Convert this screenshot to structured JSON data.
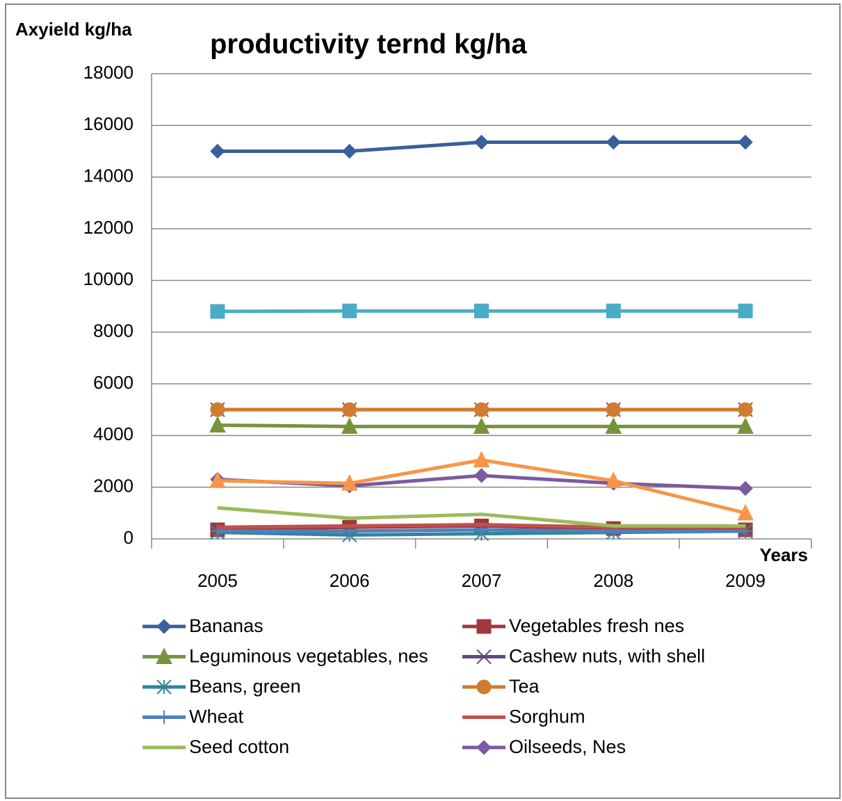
{
  "chart_data": {
    "type": "line",
    "title": "productivity ternd kg/ha",
    "y_label": "Axyield kg/ha",
    "x_label": "Years",
    "categories": [
      "2005",
      "2006",
      "2007",
      "2008",
      "2009"
    ],
    "ylim": [
      0,
      18000
    ],
    "yticks": [
      0,
      2000,
      4000,
      6000,
      8000,
      10000,
      12000,
      14000,
      16000,
      18000
    ],
    "grid": true,
    "series": [
      {
        "name": "Bananas",
        "color": "#3a5f9a",
        "marker": "diamond",
        "values": [
          15000,
          15000,
          15350,
          15350,
          15350
        ]
      },
      {
        "name": "Vegetables fresh nes",
        "color": "#a0383a",
        "marker": "square",
        "values": [
          350,
          450,
          500,
          400,
          350
        ]
      },
      {
        "name": "Leguminous vegetables, nes",
        "color": "#77933c",
        "marker": "triangle",
        "values": [
          4400,
          4350,
          4350,
          4350,
          4350
        ]
      },
      {
        "name": "Cashew nuts, with shell",
        "color": "#604a7b",
        "marker": "x",
        "values": [
          5000,
          5000,
          5000,
          5000,
          5000
        ]
      },
      {
        "name": "Beans, green",
        "color": "#31859c",
        "marker": "asterisk",
        "values": [
          250,
          150,
          200,
          250,
          300
        ]
      },
      {
        "name": "Tea",
        "color": "#d07c30",
        "marker": "circle",
        "values": [
          5000,
          5000,
          5000,
          5000,
          5000
        ]
      },
      {
        "name": "Wheat",
        "color": "#4f81bd",
        "marker": "plus",
        "values": [
          300,
          300,
          350,
          300,
          300
        ]
      },
      {
        "name": "Sorghum",
        "color": "#c0504d",
        "marker": "none",
        "values": [
          450,
          500,
          550,
          450,
          450
        ]
      },
      {
        "name": "Seed cotton",
        "color": "#9bbb59",
        "marker": "none",
        "values": [
          1200,
          800,
          950,
          500,
          500
        ]
      },
      {
        "name": "Oilseeds, Nes",
        "color": "#7a5aa0",
        "marker": "diamond",
        "values": [
          2300,
          2050,
          2450,
          2150,
          1950
        ]
      },
      {
        "color": "#4bacc6",
        "marker": "square",
        "values": [
          8800,
          8820,
          8820,
          8820,
          8820
        ]
      },
      {
        "color": "#f79646",
        "marker": "triangle",
        "values": [
          2250,
          2150,
          3050,
          2250,
          1000
        ]
      }
    ]
  }
}
